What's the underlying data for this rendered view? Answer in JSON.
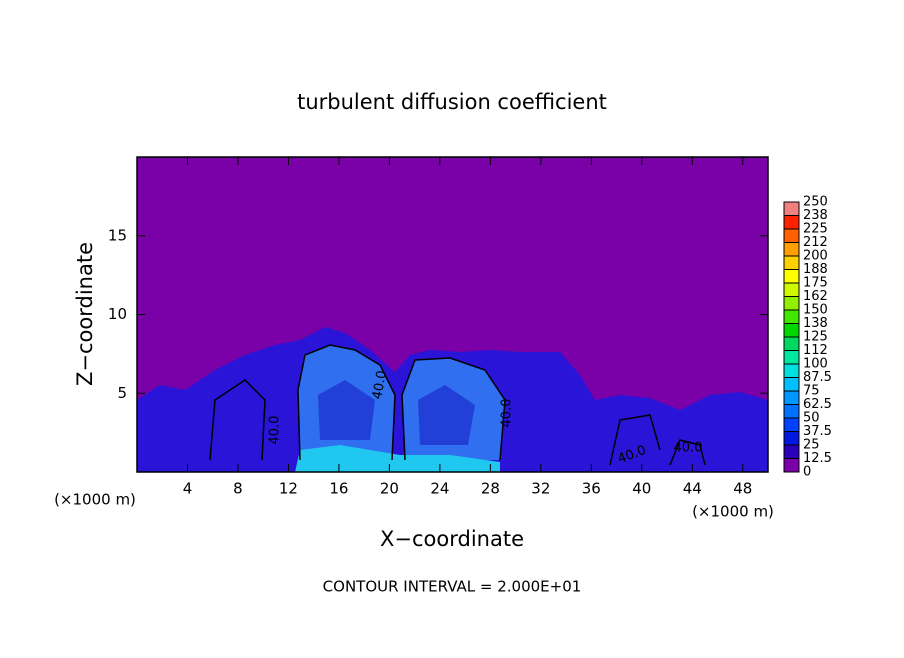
{
  "chart_data": {
    "type": "contour",
    "title": "turbulent diffusion coefficient",
    "x_label": "X−coordinate",
    "y_label": "Z−coordinate",
    "x_unit": "(×1000 m)",
    "footer": "CONTOUR INTERVAL = 2.000E+01",
    "contour_labels": [
      "40.0",
      "40.0",
      "40.0",
      "40.0",
      "40.0"
    ],
    "xlim": [
      0,
      50
    ],
    "xticks": [
      4,
      8,
      12,
      16,
      20,
      24,
      28,
      32,
      36,
      40,
      44,
      48
    ],
    "ylim": [
      0,
      20
    ],
    "yticks": [
      5,
      10,
      15
    ],
    "clim": [
      0,
      250
    ],
    "cticks": [
      0,
      12.5,
      25,
      37.5,
      50,
      62.5,
      75,
      87.5,
      100,
      {
        "value": 112.5,
        "label": "112"
      },
      125,
      {
        "value": 137.5,
        "label": "138"
      },
      150,
      {
        "value": 162.5,
        "label": "162"
      },
      175,
      {
        "value": 187.5,
        "label": "188"
      },
      200,
      {
        "value": 212.5,
        "label": "212"
      },
      225,
      {
        "value": 237.5,
        "label": "238"
      },
      250
    ],
    "colors": [
      "#7a00a8",
      "#2a00b8",
      "#0018e0",
      "#0040ff",
      "#0070ff",
      "#0098ff",
      "#00c0ff",
      "#00e0e0",
      "#00e8a0",
      "#00d860",
      "#00d800",
      "#40e800",
      "#90f000",
      "#d0f800",
      "#ffff00",
      "#ffd000",
      "#ffa000",
      "#ff6000",
      "#ff2000",
      "#f08080"
    ]
  }
}
